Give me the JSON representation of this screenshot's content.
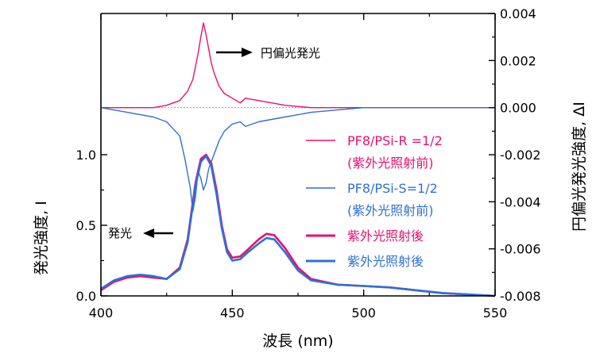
{
  "chart_data": {
    "type": "line",
    "xlabel": "波長 (nm)",
    "ylabel_left": "発光強度, I",
    "ylabel_right": "円偏光発光強度, ΔI",
    "xlim": [
      400,
      550
    ],
    "ylim_left": [
      0,
      2.0
    ],
    "ylim_right": [
      -0.008,
      0.004
    ],
    "x_ticks": [
      400,
      450,
      500,
      550
    ],
    "y_left_ticks": [
      0.0,
      0.5,
      1.0
    ],
    "y_left_tick_labels": [
      "0.0",
      "0.5",
      "1.0"
    ],
    "y_right_ticks": [
      -0.008,
      -0.006,
      -0.004,
      -0.002,
      0.0,
      0.002,
      0.004
    ],
    "y_right_tick_labels": [
      "-0.008",
      "-0.006",
      "-0.004",
      "-0.002",
      "0.000",
      "0.002",
      "0.004"
    ],
    "colors": {
      "pink": "#e8106e",
      "blue": "#2f6fd6"
    },
    "series": [
      {
        "name": "PF8/PSi-R =1/2 (紫外光照射前)",
        "axis": "right",
        "color": "#e8106e",
        "width": 1.4,
        "x": [
          400,
          410,
          420,
          425,
          430,
          433,
          435,
          437,
          438,
          439,
          440,
          441,
          442,
          443,
          445,
          447,
          450,
          453,
          455,
          460,
          465,
          470,
          480,
          500,
          520,
          550
        ],
        "y": [
          0.0,
          0.0,
          0.0,
          0.0001,
          0.0003,
          0.0007,
          0.0012,
          0.0023,
          0.003,
          0.0036,
          0.0031,
          0.0025,
          0.0019,
          0.0015,
          0.0009,
          0.0006,
          0.0004,
          0.0002,
          0.0004,
          0.0003,
          0.0002,
          0.0001,
          0.0,
          0.0,
          0.0,
          0.0
        ]
      },
      {
        "name": "PF8/PSi-S=1/2 (紫外光照射前)",
        "axis": "right",
        "color": "#2f6fd6",
        "width": 1.4,
        "x": [
          400,
          410,
          420,
          425,
          430,
          432,
          434,
          435,
          436,
          437,
          438,
          439,
          440,
          441,
          442,
          443,
          445,
          447,
          450,
          453,
          455,
          460,
          465,
          470,
          475,
          480,
          490,
          500,
          520,
          550
        ],
        "y": [
          0.0,
          -0.0002,
          -0.0004,
          -0.0006,
          -0.0012,
          -0.0022,
          -0.0034,
          -0.0044,
          -0.0038,
          -0.0027,
          -0.003,
          -0.0035,
          -0.0032,
          -0.0026,
          -0.0023,
          -0.002,
          -0.0014,
          -0.001,
          -0.0007,
          -0.0006,
          -0.0008,
          -0.0006,
          -0.0005,
          -0.0004,
          -0.0003,
          -0.0002,
          -0.0001,
          0.0,
          0.0,
          0.0
        ]
      },
      {
        "name": "紫外光照射後",
        "axis": "left",
        "color": "#e8106e",
        "width": 2.6,
        "x": [
          400,
          405,
          410,
          415,
          420,
          425,
          430,
          433,
          436,
          438,
          440,
          442,
          444,
          446,
          448,
          450,
          453,
          456,
          460,
          463,
          466,
          470,
          475,
          480,
          490,
          500,
          510,
          520,
          530,
          550
        ],
        "y": [
          0.04,
          0.1,
          0.13,
          0.14,
          0.13,
          0.12,
          0.2,
          0.4,
          0.8,
          0.97,
          1.0,
          0.94,
          0.75,
          0.5,
          0.33,
          0.27,
          0.28,
          0.33,
          0.4,
          0.44,
          0.43,
          0.34,
          0.2,
          0.12,
          0.08,
          0.07,
          0.06,
          0.04,
          0.02,
          0.0
        ]
      },
      {
        "name": "紫外光照射後",
        "axis": "left",
        "color": "#2f6fd6",
        "width": 2.6,
        "x": [
          400,
          405,
          410,
          415,
          420,
          425,
          430,
          433,
          436,
          438,
          440,
          442,
          444,
          446,
          448,
          450,
          453,
          456,
          460,
          463,
          466,
          470,
          475,
          480,
          490,
          500,
          510,
          520,
          530,
          550
        ],
        "y": [
          0.05,
          0.11,
          0.14,
          0.15,
          0.14,
          0.12,
          0.19,
          0.38,
          0.78,
          0.95,
          0.99,
          0.92,
          0.72,
          0.48,
          0.31,
          0.25,
          0.26,
          0.31,
          0.37,
          0.41,
          0.4,
          0.31,
          0.18,
          0.11,
          0.08,
          0.07,
          0.06,
          0.04,
          0.02,
          0.0
        ]
      }
    ],
    "legend": {
      "placement": "right",
      "entries": [
        {
          "label_line1": "PF8/PSi-R =1/2",
          "label_line2": "(紫外光照射前)",
          "color": "#e8106e",
          "thick": false
        },
        {
          "label_line1": "PF8/PSi-S=1/2",
          "label_line2": "(紫外光照射前)",
          "color": "#2f6fd6",
          "thick": false
        },
        {
          "label_line1": "紫外光照射後",
          "label_line2": "",
          "color": "#e8106e",
          "thick": true
        },
        {
          "label_line1": "紫外光照射後",
          "label_line2": "",
          "color": "#2f6fd6",
          "thick": true
        }
      ]
    },
    "annotations": [
      {
        "text": "円偏光発光",
        "arrow": "right"
      },
      {
        "text": "発光",
        "arrow": "left"
      }
    ]
  }
}
